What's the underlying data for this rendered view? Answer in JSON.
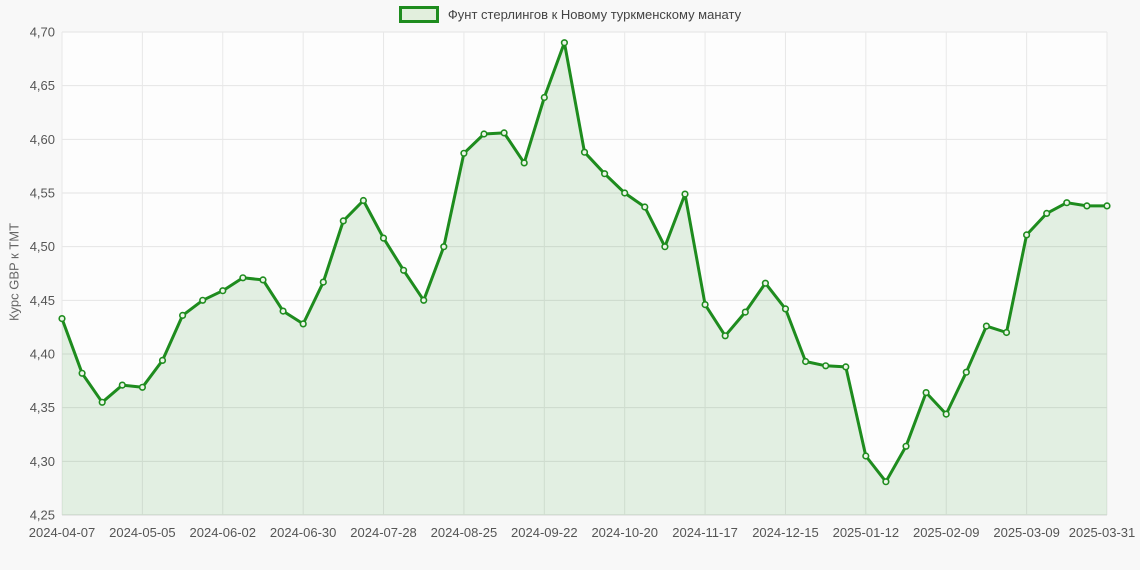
{
  "page": {
    "background": "#f8f8f8"
  },
  "legend": {
    "label": "Фунт стерлингов к Новому туркменскому манату"
  },
  "y_axis": {
    "title": "Курс GBP к TMT"
  },
  "chart_data": {
    "type": "area",
    "title": "",
    "series_name": "Фунт стерлингов к Новому туркменскому манату",
    "ylabel": "Курс GBP к TMT",
    "xlabel": "",
    "ylim": [
      4.25,
      4.7
    ],
    "y_step": 0.05,
    "x_tick_every": 4,
    "grid": true,
    "legend_position": "top-center",
    "decimal_separator": ",",
    "line_color": "#1e8c1e",
    "fill_color": "rgba(30,140,30,0.12)",
    "marker_fill": "#eef5ea",
    "grid_color": "#e4e4e4",
    "x": [
      "2024-04-07",
      "2024-04-14",
      "2024-04-21",
      "2024-04-28",
      "2024-05-05",
      "2024-05-12",
      "2024-05-19",
      "2024-05-26",
      "2024-06-02",
      "2024-06-09",
      "2024-06-16",
      "2024-06-23",
      "2024-06-30",
      "2024-07-07",
      "2024-07-14",
      "2024-07-21",
      "2024-07-28",
      "2024-08-04",
      "2024-08-11",
      "2024-08-18",
      "2024-08-25",
      "2024-09-01",
      "2024-09-08",
      "2024-09-15",
      "2024-09-22",
      "2024-09-29",
      "2024-10-06",
      "2024-10-13",
      "2024-10-20",
      "2024-10-27",
      "2024-11-03",
      "2024-11-10",
      "2024-11-17",
      "2024-11-24",
      "2024-12-01",
      "2024-12-08",
      "2024-12-15",
      "2024-12-22",
      "2024-12-29",
      "2025-01-05",
      "2025-01-12",
      "2025-01-19",
      "2025-01-26",
      "2025-02-02",
      "2025-02-09",
      "2025-02-16",
      "2025-02-23",
      "2025-03-02",
      "2025-03-09",
      "2025-03-16",
      "2025-03-23",
      "2025-03-30",
      "2025-03-31"
    ],
    "values": [
      4.433,
      4.382,
      4.355,
      4.371,
      4.369,
      4.394,
      4.436,
      4.45,
      4.459,
      4.471,
      4.469,
      4.44,
      4.428,
      4.467,
      4.524,
      4.543,
      4.508,
      4.478,
      4.45,
      4.5,
      4.587,
      4.605,
      4.606,
      4.578,
      4.639,
      4.69,
      4.588,
      4.568,
      4.55,
      4.537,
      4.5,
      4.549,
      4.446,
      4.417,
      4.439,
      4.466,
      4.442,
      4.393,
      4.389,
      4.388,
      4.305,
      4.281,
      4.314,
      4.364,
      4.344,
      4.383,
      4.426,
      4.42,
      4.511,
      4.531,
      4.541,
      4.538,
      4.538
    ]
  }
}
